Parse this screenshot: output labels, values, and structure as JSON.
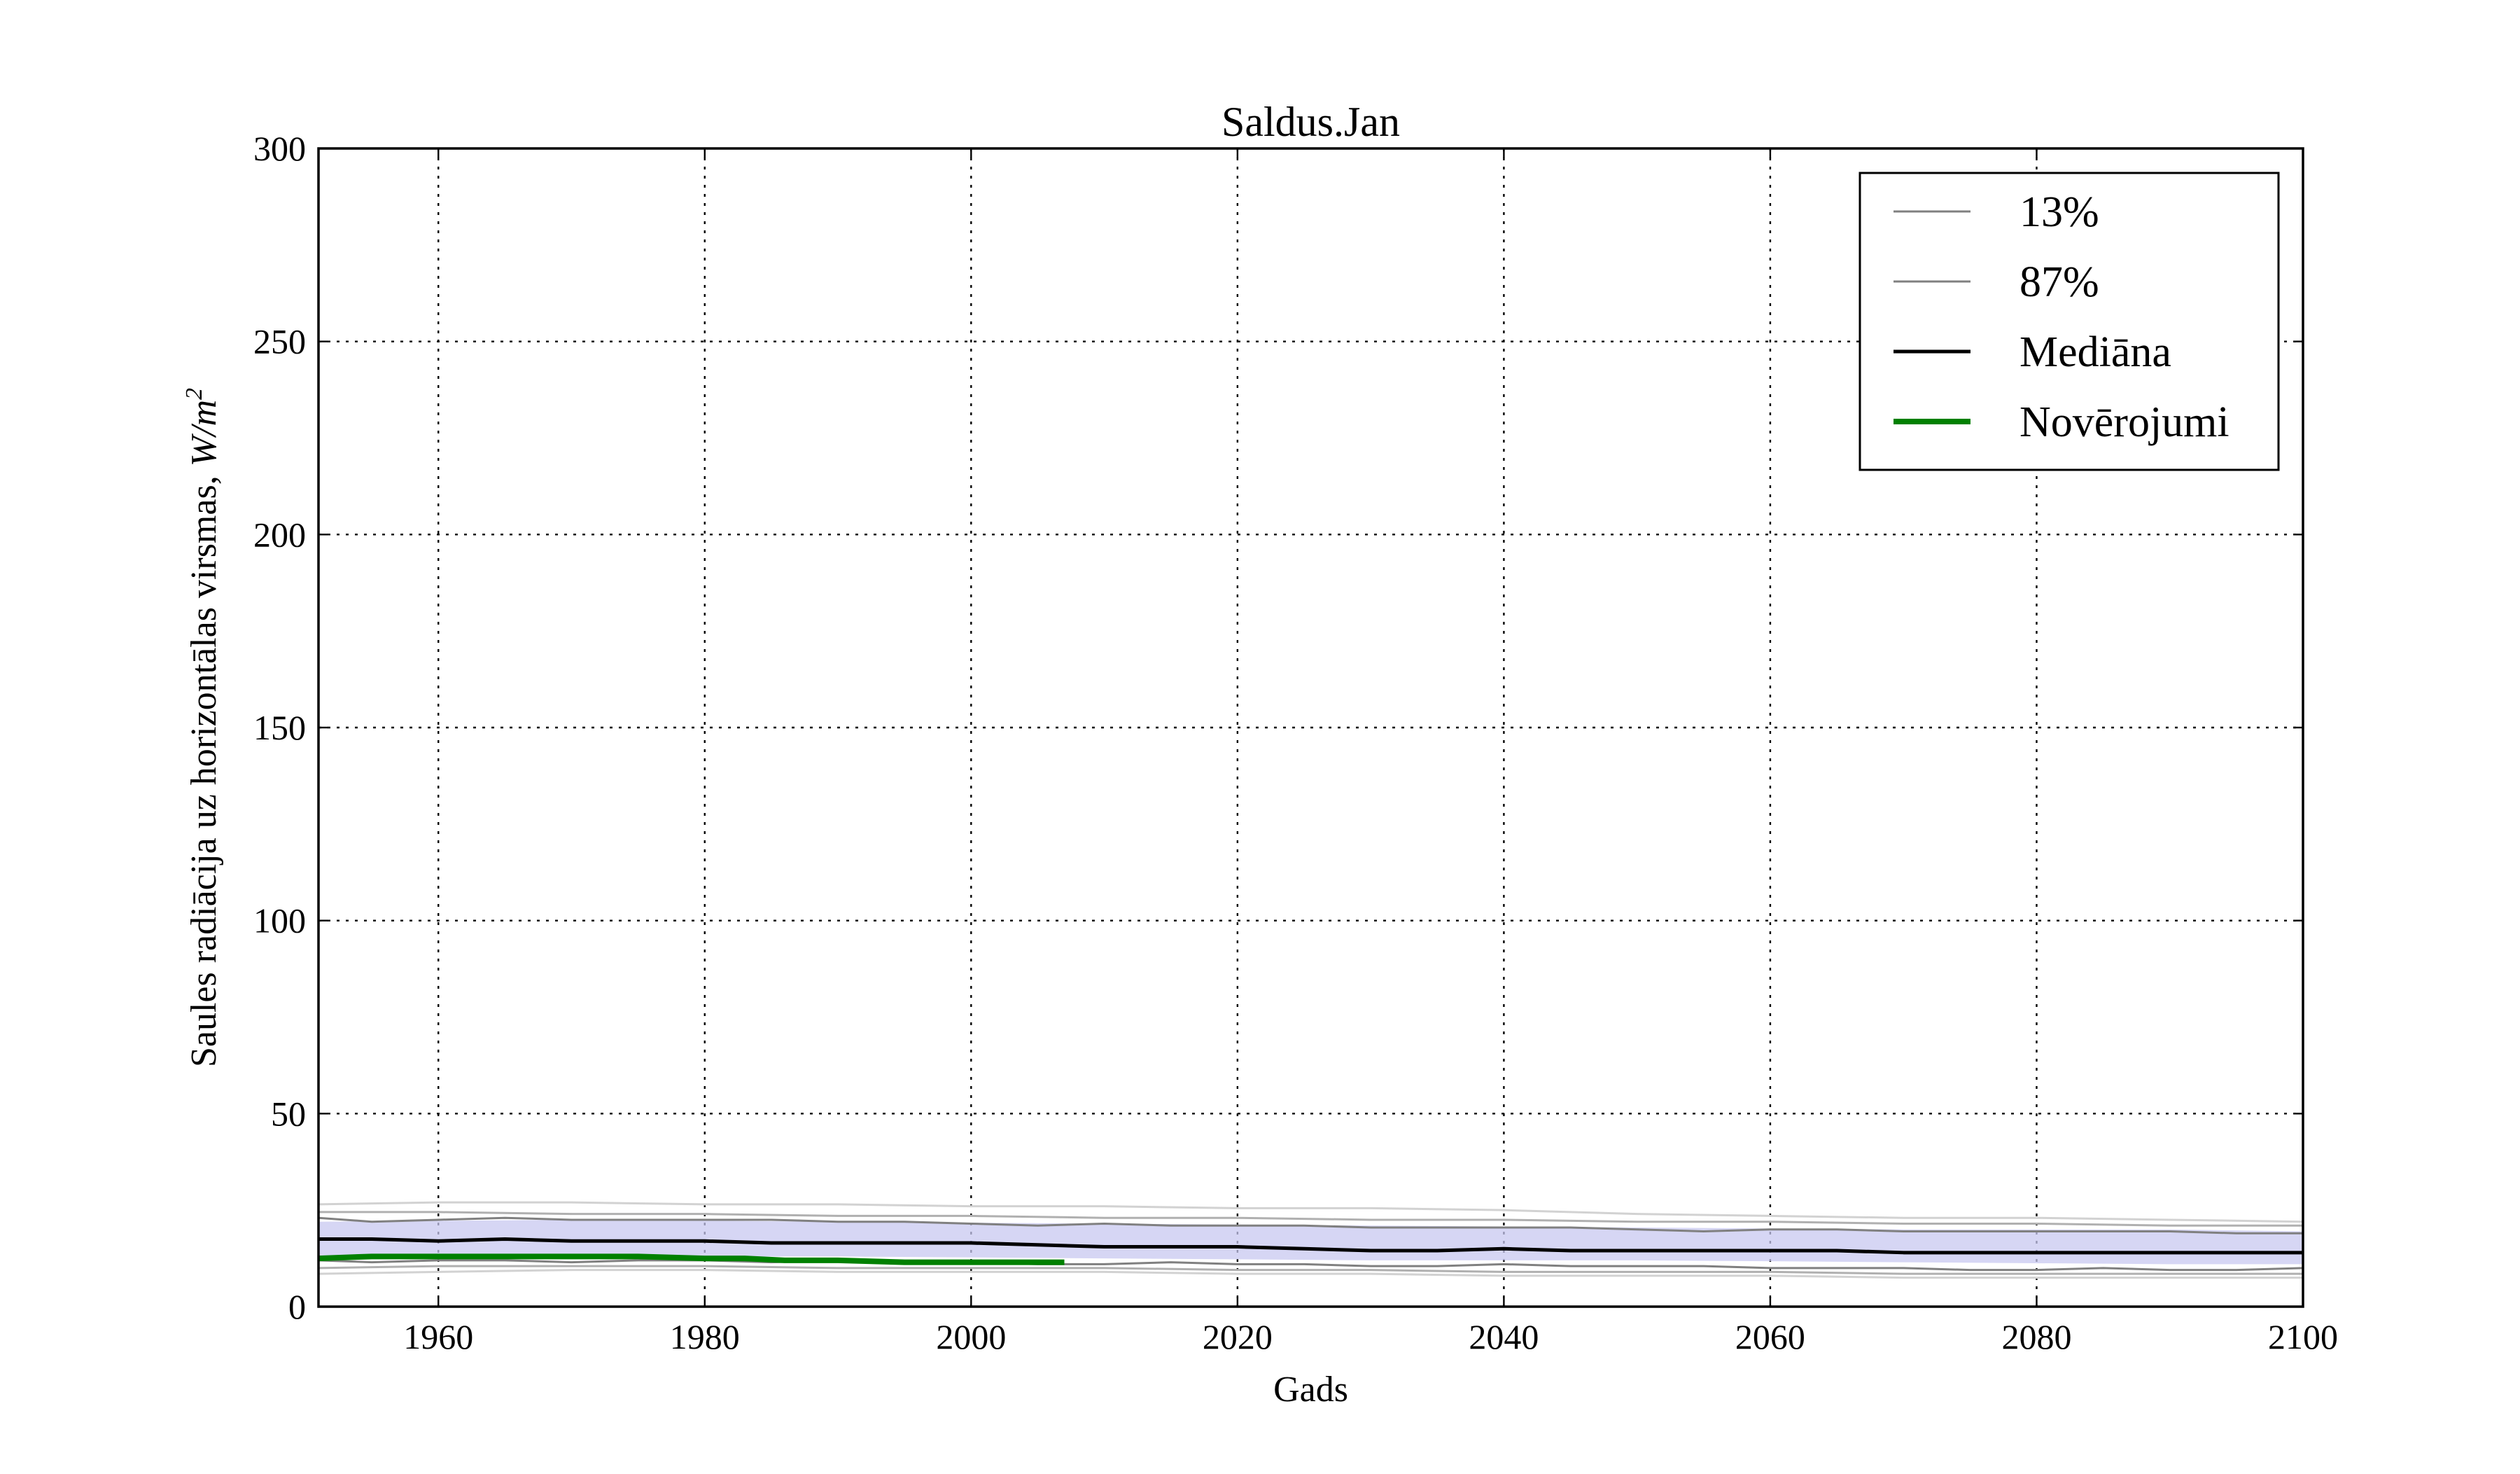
{
  "chart_data": {
    "type": "line",
    "title": "Saldus.Jan",
    "xlabel": "Gads",
    "ylabel": "Saules radiācija uz horizontālas virsmas, ",
    "ylabel_unit": "W/m",
    "ylabel_unit_exp": "2",
    "xlim": [
      1951,
      2100
    ],
    "ylim": [
      0,
      300
    ],
    "x_ticks": [
      1960,
      1980,
      2000,
      2020,
      2040,
      2060,
      2080,
      2100
    ],
    "y_ticks": [
      0,
      50,
      100,
      150,
      200,
      250,
      300
    ],
    "grid": true,
    "legend_position": "top-right",
    "band": {
      "color": "#c8c8f0",
      "x": [
        1951,
        1970,
        1990,
        2010,
        2030,
        2050,
        2070,
        2090,
        2100
      ],
      "lower": [
        13,
        13,
        13,
        12.5,
        12,
        12,
        11.5,
        11,
        11
      ],
      "upper": [
        22,
        22.5,
        22,
        21.5,
        21,
        20.5,
        20,
        20,
        19.5
      ]
    },
    "series": [
      {
        "name": "13%",
        "color": "#808080",
        "width": 3,
        "legend": true,
        "x": [
          1951,
          1955,
          1960,
          1965,
          1970,
          1975,
          1980,
          1985,
          1990,
          1995,
          2000,
          2005,
          2010,
          2015,
          2020,
          2025,
          2030,
          2035,
          2040,
          2045,
          2050,
          2055,
          2060,
          2065,
          2070,
          2075,
          2080,
          2085,
          2090,
          2095,
          2100
        ],
        "y": [
          12,
          11.5,
          12,
          12,
          11.5,
          12,
          12,
          11.5,
          12,
          11.5,
          11.5,
          11,
          11,
          11.5,
          11,
          11,
          10.5,
          10.5,
          11,
          10.5,
          10.5,
          10.5,
          10,
          10,
          10,
          9.5,
          9.5,
          10,
          9.5,
          9.5,
          10
        ]
      },
      {
        "name": "87%",
        "color": "#808080",
        "width": 3,
        "legend": true,
        "x": [
          1951,
          1955,
          1960,
          1965,
          1970,
          1975,
          1980,
          1985,
          1990,
          1995,
          2000,
          2005,
          2010,
          2015,
          2020,
          2025,
          2030,
          2035,
          2040,
          2045,
          2050,
          2055,
          2060,
          2065,
          2070,
          2075,
          2080,
          2085,
          2090,
          2095,
          2100
        ],
        "y": [
          23,
          22,
          22.5,
          23,
          22.5,
          22.5,
          22.5,
          22.5,
          22,
          22,
          21.5,
          21,
          21.5,
          21,
          21,
          21,
          20.5,
          20.5,
          20.5,
          20.5,
          20,
          19.5,
          20,
          20,
          19.5,
          19.5,
          19.5,
          19.5,
          19.5,
          19,
          19
        ]
      },
      {
        "name": "",
        "color": "#d2d2d2",
        "width": 3,
        "legend": false,
        "x": [
          1951,
          1960,
          1970,
          1980,
          1990,
          2000,
          2010,
          2020,
          2030,
          2040,
          2050,
          2060,
          2070,
          2080,
          2090,
          2100
        ],
        "y": [
          26.5,
          27,
          27,
          26.5,
          26.5,
          26,
          26,
          25.5,
          25.5,
          25,
          24,
          23.5,
          23,
          23,
          22.5,
          22
        ]
      },
      {
        "name": "",
        "color": "#d2d2d2",
        "width": 3,
        "legend": false,
        "x": [
          1951,
          1960,
          1970,
          1980,
          1990,
          2000,
          2010,
          2020,
          2030,
          2040,
          2050,
          2060,
          2070,
          2080,
          2090,
          2100
        ],
        "y": [
          8.5,
          9,
          9.5,
          9.5,
          9,
          9,
          9,
          8.5,
          8.5,
          8,
          8,
          8,
          7.5,
          7.5,
          7.5,
          7.5
        ]
      },
      {
        "name": "",
        "color": "#b0b0b0",
        "width": 3,
        "legend": false,
        "x": [
          1951,
          1960,
          1970,
          1980,
          1990,
          2000,
          2010,
          2020,
          2030,
          2040,
          2050,
          2060,
          2070,
          2080,
          2090,
          2100
        ],
        "y": [
          10,
          10.5,
          10.5,
          10.5,
          10,
          10,
          10,
          9.5,
          9.5,
          9,
          9,
          9,
          8.5,
          8.5,
          8.5,
          8.5
        ]
      },
      {
        "name": "",
        "color": "#b0b0b0",
        "width": 3,
        "legend": false,
        "x": [
          1951,
          1960,
          1970,
          1980,
          1990,
          2000,
          2010,
          2020,
          2030,
          2040,
          2050,
          2060,
          2070,
          2080,
          2090,
          2100
        ],
        "y": [
          24.5,
          24.5,
          24,
          24,
          23.5,
          23.5,
          23,
          23,
          22.5,
          22.5,
          22,
          22,
          21.5,
          21.5,
          21,
          21
        ]
      },
      {
        "name": "Mediāna",
        "color": "#000000",
        "width": 5,
        "legend": true,
        "x": [
          1951,
          1955,
          1960,
          1965,
          1970,
          1975,
          1980,
          1985,
          1990,
          1995,
          2000,
          2005,
          2010,
          2015,
          2020,
          2025,
          2030,
          2035,
          2040,
          2045,
          2050,
          2055,
          2060,
          2065,
          2070,
          2075,
          2080,
          2085,
          2090,
          2095,
          2100
        ],
        "y": [
          17.5,
          17.5,
          17,
          17.5,
          17,
          17,
          17,
          16.5,
          16.5,
          16.5,
          16.5,
          16,
          15.5,
          15.5,
          15.5,
          15,
          14.5,
          14.5,
          15,
          14.5,
          14.5,
          14.5,
          14.5,
          14.5,
          14,
          14,
          14,
          14,
          14,
          14,
          14
        ]
      },
      {
        "name": "Novērojumi",
        "color": "#008000",
        "width": 8,
        "legend": true,
        "x": [
          1951,
          1955,
          1960,
          1965,
          1970,
          1975,
          1980,
          1983,
          1986,
          1990,
          1995,
          2000,
          2005,
          2007
        ],
        "y": [
          12.5,
          13,
          13,
          13,
          13,
          13,
          12.5,
          12.5,
          12,
          12,
          11.5,
          11.5,
          11.5,
          11.5
        ]
      }
    ]
  }
}
